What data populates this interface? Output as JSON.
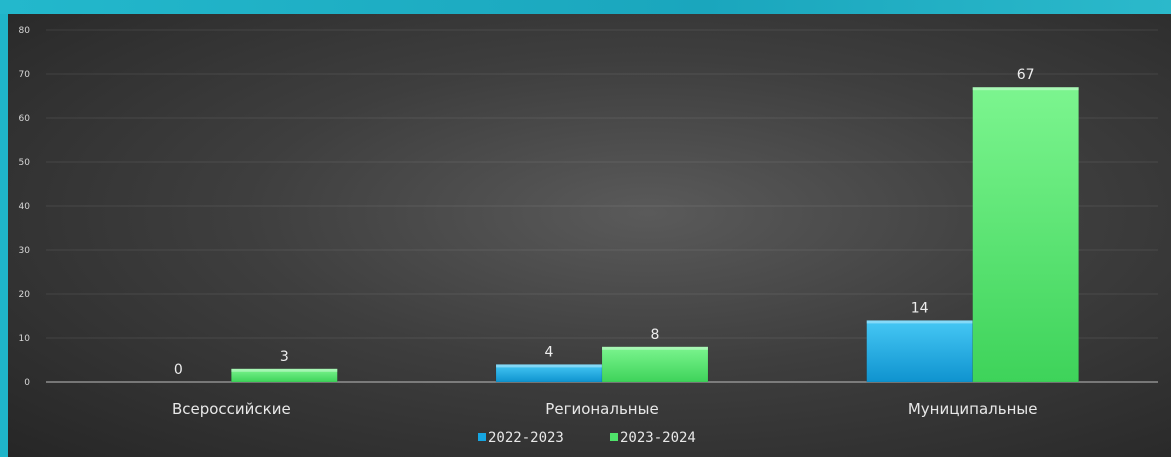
{
  "chart_data": {
    "type": "bar",
    "categories": [
      "Всероссийские",
      "Региональные",
      "Муниципальные"
    ],
    "series": [
      {
        "name": "2022-2023",
        "values": [
          0,
          4,
          14
        ],
        "color": "#16a6e2"
      },
      {
        "name": "2023-2024",
        "values": [
          3,
          8,
          67
        ],
        "color": "#4fe36a"
      }
    ],
    "ylim": [
      0,
      80
    ],
    "yticks": [
      0,
      10,
      20,
      30,
      40,
      50,
      60,
      70,
      80
    ],
    "grid": true,
    "legend": "bottom"
  }
}
